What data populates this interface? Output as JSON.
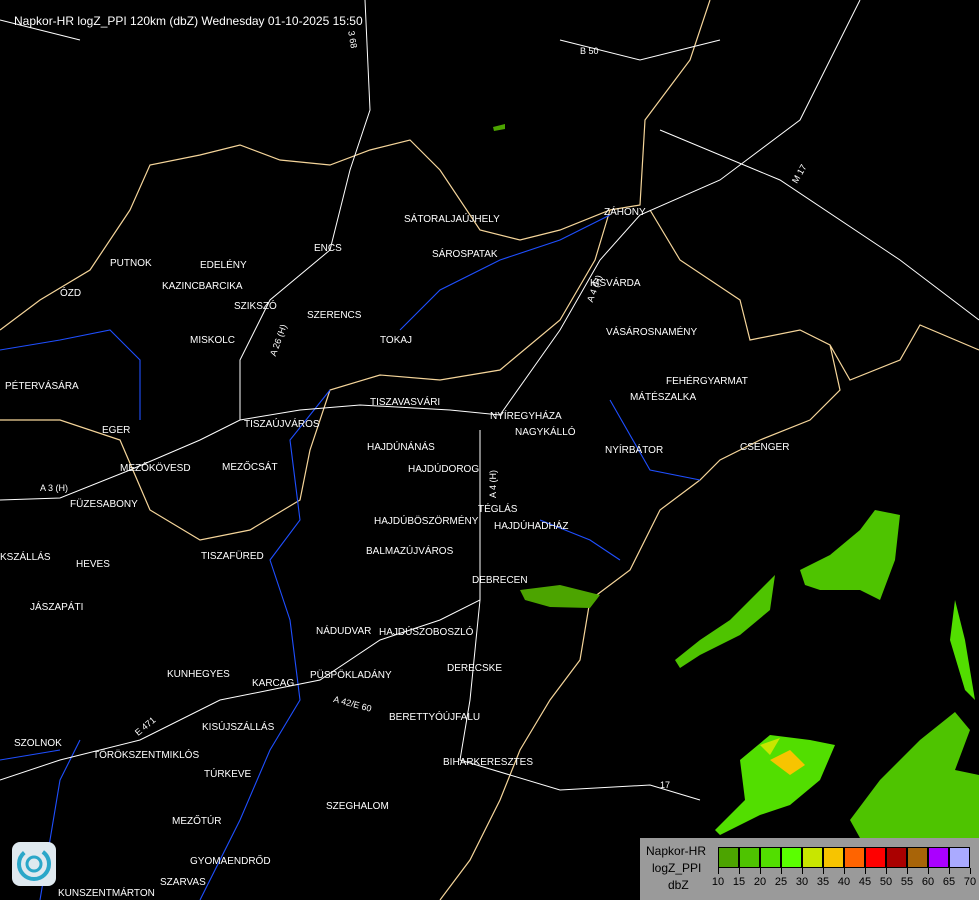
{
  "title": "Napkor-HR logZ_PPI 120km (dbZ) Wednesday 01-10-2025 15:50",
  "cities": [
    "PUTNOK",
    "EDELÉNY",
    "KAZINCBARCIKA",
    "SZIKSZÓ",
    "ENCS",
    "SÁTORALJAÚJHELY",
    "SÁROSPATAK",
    "ZÁHONY",
    "KISVÁRDA",
    "SZERENCS",
    "TOKAJ",
    "VÁSÁROSNAMÉNY",
    "FEHÉRGYARMAT",
    "MÁTÉSZALKA",
    "MISKOLC",
    "PÉTERVÁSÁRA",
    "ÓZD",
    "EGER",
    "TISZAÚJVÁROS",
    "TISZAVASVÁRI",
    "NYÍREGYHÁZA",
    "NAGYKÁLLÓ",
    "HAJDÚNÁNÁS",
    "NYÍRBÁTOR",
    "CSENGER",
    "MEZŐKÖVESD",
    "MEZŐCSÁT",
    "HAJDÚDOROG",
    "FÜZESABONY",
    "TÉGLÁS",
    "HAJDÚBÖSZÖRMÉNY",
    "HAJDÚHADHÁZ",
    "TISZAFÜRED",
    "BALMAZÚJVÁROS",
    "KSZÁLLÁS",
    "HEVES",
    "DEBRECEN",
    "JÁSZAPÁTI",
    "NÁDUDVAR",
    "HAJDÚSZOBOSZLÓ",
    "DERECSKE",
    "KUNHEGYES",
    "KARCAG",
    "PÜSPÖKLADÁNY",
    "BERETTYÓÚJFALU",
    "KISÚJSZÁLLÁS",
    "SZOLNOK",
    "TÖRÖKSZENTMIKLÓS",
    "BIHARKERESZTES",
    "TÚRKEVE",
    "SZEGHALOM",
    "MEZŐTÚR",
    "GYOMAENDRŐD",
    "SZARVAS",
    "KUNSZENTMÁRTON"
  ],
  "roads": [
    "B 50",
    "M 17",
    "A 4 (H)",
    "A 3 (H)",
    "A 26 (H)",
    "A 4 (H)",
    "A 42/E 60",
    "E 471",
    "17",
    "3 68"
  ],
  "legend": {
    "lines": [
      "Napkor-HR",
      "logZ_PPI",
      "dbZ"
    ],
    "ticks": [
      "10",
      "15",
      "20",
      "25",
      "30",
      "35",
      "40",
      "45",
      "50",
      "55",
      "60",
      "65",
      "70"
    ],
    "colors": [
      "#4ca400",
      "#4ec400",
      "#52de00",
      "#5aff00",
      "#c8e600",
      "#f7c400",
      "#ff6400",
      "#ff0000",
      "#aa0000",
      "#a86408",
      "#aa00ff",
      "#aaaaff"
    ]
  },
  "colors": {
    "border": "#f5d59a",
    "river": "#1f4fff",
    "road": "#ffffff"
  },
  "logo": {
    "icon": "radar-logo-icon"
  }
}
